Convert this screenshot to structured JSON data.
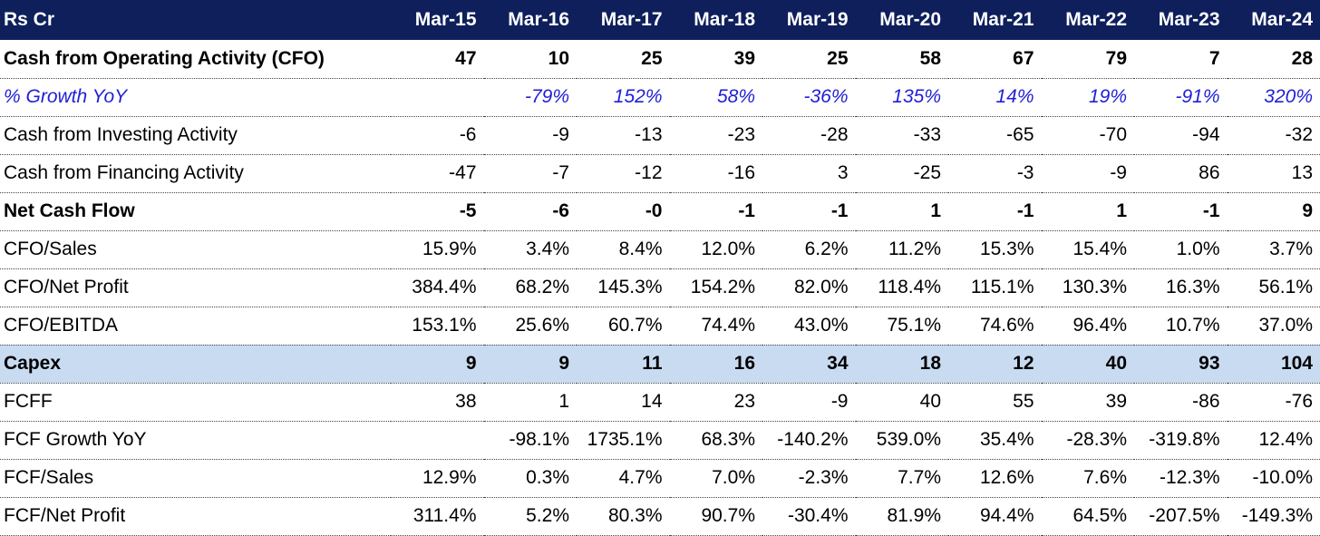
{
  "header": {
    "label": "Rs Cr",
    "columns": [
      "Mar-15",
      "Mar-16",
      "Mar-17",
      "Mar-18",
      "Mar-19",
      "Mar-20",
      "Mar-21",
      "Mar-22",
      "Mar-23",
      "Mar-24"
    ]
  },
  "rows": [
    {
      "label": "Cash from Operating Activity (CFO)",
      "values": [
        "47",
        "10",
        "25",
        "39",
        "25",
        "58",
        "67",
        "79",
        "7",
        "28"
      ]
    },
    {
      "label": "% Growth YoY",
      "values": [
        "",
        "-79%",
        "152%",
        "58%",
        "-36%",
        "135%",
        "14%",
        "19%",
        "-91%",
        "320%"
      ]
    },
    {
      "label": "Cash from Investing Activity",
      "values": [
        "-6",
        "-9",
        "-13",
        "-23",
        "-28",
        "-33",
        "-65",
        "-70",
        "-94",
        "-32"
      ]
    },
    {
      "label": "Cash from Financing Activity",
      "values": [
        "-47",
        "-7",
        "-12",
        "-16",
        "3",
        "-25",
        "-3",
        "-9",
        "86",
        "13"
      ]
    },
    {
      "label": "Net Cash Flow",
      "values": [
        "-5",
        "-6",
        "-0",
        "-1",
        "-1",
        "1",
        "-1",
        "1",
        "-1",
        "9"
      ]
    },
    {
      "label": "CFO/Sales",
      "values": [
        "15.9%",
        "3.4%",
        "8.4%",
        "12.0%",
        "6.2%",
        "11.2%",
        "15.3%",
        "15.4%",
        "1.0%",
        "3.7%"
      ]
    },
    {
      "label": "CFO/Net Profit",
      "values": [
        "384.4%",
        "68.2%",
        "145.3%",
        "154.2%",
        "82.0%",
        "118.4%",
        "115.1%",
        "130.3%",
        "16.3%",
        "56.1%"
      ]
    },
    {
      "label": "CFO/EBITDA",
      "values": [
        "153.1%",
        "25.6%",
        "60.7%",
        "74.4%",
        "43.0%",
        "75.1%",
        "74.6%",
        "96.4%",
        "10.7%",
        "37.0%"
      ]
    },
    {
      "label": "Capex",
      "values": [
        "9",
        "9",
        "11",
        "16",
        "34",
        "18",
        "12",
        "40",
        "93",
        "104"
      ]
    },
    {
      "label": "FCFF",
      "values": [
        "38",
        "1",
        "14",
        "23",
        "-9",
        "40",
        "55",
        "39",
        "-86",
        "-76"
      ]
    },
    {
      "label": "FCF Growth YoY",
      "values": [
        "",
        "-98.1%",
        "1735.1%",
        "68.3%",
        "-140.2%",
        "539.0%",
        "35.4%",
        "-28.3%",
        "-319.8%",
        "12.4%"
      ]
    },
    {
      "label": "FCF/Sales",
      "values": [
        "12.9%",
        "0.3%",
        "4.7%",
        "7.0%",
        "-2.3%",
        "7.7%",
        "12.6%",
        "7.6%",
        "-12.3%",
        "-10.0%"
      ]
    },
    {
      "label": "FCF/Net Profit",
      "values": [
        "311.4%",
        "5.2%",
        "80.3%",
        "90.7%",
        "-30.4%",
        "81.9%",
        "94.4%",
        "64.5%",
        "-207.5%",
        "-149.3%"
      ]
    }
  ]
}
